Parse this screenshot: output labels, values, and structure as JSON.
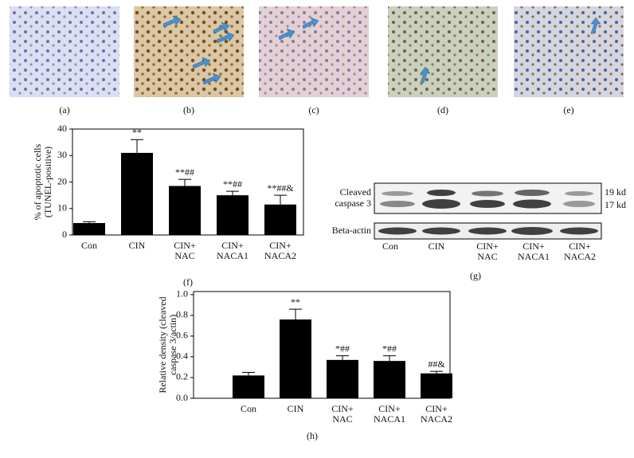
{
  "micrographs": {
    "labels": [
      "(a)",
      "(b)",
      "(c)",
      "(d)",
      "(e)"
    ]
  },
  "chart_data": [
    {
      "type": "bar",
      "panel_label": "(f)",
      "ylabel": [
        "% of apoptotic cells",
        "(TUNEL-positive)"
      ],
      "categories": [
        [
          "Con"
        ],
        [
          "CIN"
        ],
        [
          "CIN+",
          "NAC"
        ],
        [
          "CIN+",
          "NACA1"
        ],
        [
          "CIN+",
          "NACA2"
        ]
      ],
      "values": [
        4.5,
        31,
        18.5,
        15,
        11.5
      ],
      "errors": [
        0.5,
        5,
        2.5,
        1.5,
        3.5
      ],
      "annotations": [
        null,
        "**",
        "**##",
        "**##",
        "**##&"
      ],
      "color": "#000000",
      "ylim": [
        0,
        40
      ],
      "yticks": [
        0,
        10,
        20,
        30,
        40
      ]
    },
    {
      "type": "bar",
      "panel_label": "(h)",
      "ylabel": [
        "Relative density (cleaved",
        "caspase 3/actin)"
      ],
      "categories": [
        [
          "Con"
        ],
        [
          "CIN"
        ],
        [
          "CIN+",
          "NAC"
        ],
        [
          "CIN+",
          "NACA1"
        ],
        [
          "CIN+",
          "NACA2"
        ]
      ],
      "values": [
        0.22,
        0.76,
        0.37,
        0.36,
        0.24
      ],
      "errors": [
        0.03,
        0.1,
        0.04,
        0.05,
        0.02
      ],
      "annotations": [
        null,
        "**",
        "*##",
        "*##",
        "##&"
      ],
      "color": "#000000",
      "ylim": [
        0,
        1.03
      ],
      "yticks": [
        {
          "value": 0,
          "label": "0.0"
        },
        0.2,
        0.4,
        0.6,
        0.8,
        {
          "value": 1,
          "label": "1.0"
        }
      ]
    }
  ],
  "blot": {
    "panel_label": "(g)",
    "protein": [
      "Cleaved",
      "caspase 3"
    ],
    "sizes": [
      "19 kd",
      "17 kd"
    ],
    "loading": "Beta-actin",
    "lanes": [
      [
        "Con"
      ],
      [
        "CIN"
      ],
      [
        "CIN+",
        "NAC"
      ],
      [
        "CIN+",
        "NACA1"
      ],
      [
        "CIN+",
        "NACA2"
      ]
    ]
  }
}
